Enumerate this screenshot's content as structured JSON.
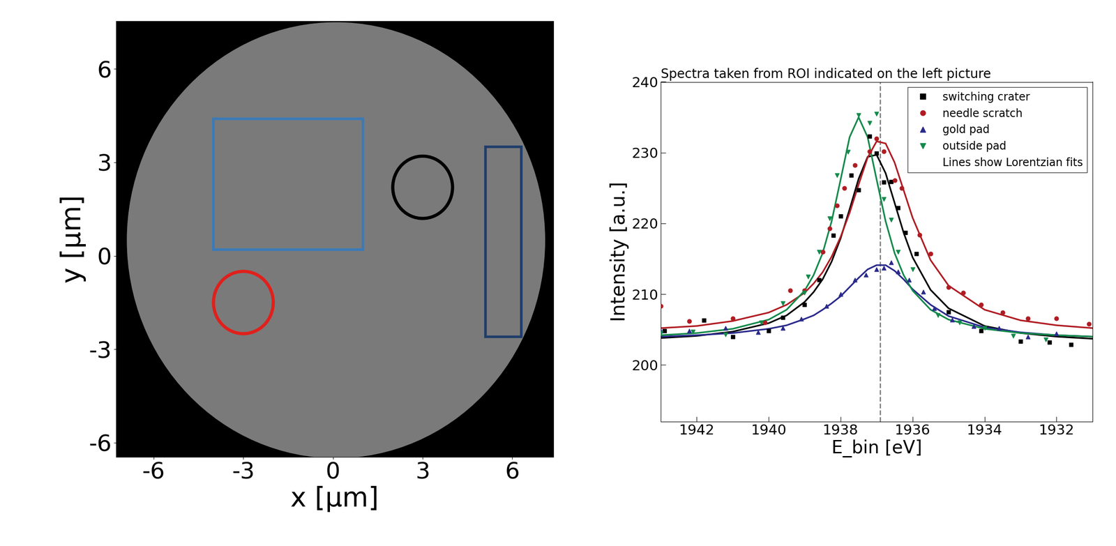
{
  "chart_data": [
    {
      "type": "image",
      "xlabel": "x [µm]",
      "ylabel": "y [µm]",
      "xlim": [
        -7.26,
        7.38
      ],
      "ylim": [
        -6.46,
        7.53
      ],
      "xticks": [
        -6,
        -3,
        0,
        3,
        6
      ],
      "yticks": [
        -6,
        -3,
        0,
        3,
        6
      ],
      "field_of_view": {
        "center": [
          0.1,
          0.5
        ],
        "radius": 7.0
      },
      "rois": [
        {
          "shape": "rectangle",
          "x": [
            -4.0,
            1.0
          ],
          "y": [
            0.2,
            4.4
          ],
          "color": "#3a7ab8"
        },
        {
          "shape": "circle",
          "center": [
            3.0,
            2.2
          ],
          "radius": 1.0,
          "color": "#000000"
        },
        {
          "shape": "circle",
          "center": [
            -3.0,
            -1.5
          ],
          "radius": 1.0,
          "color": "#e0201c"
        },
        {
          "shape": "rectangle",
          "x": [
            5.1,
            6.3
          ],
          "y": [
            -2.6,
            3.5
          ],
          "color": "#1f3d6b"
        }
      ]
    },
    {
      "type": "scatter",
      "title": "Spectra taken from ROI indicated on the left picture",
      "xlabel": "E_bin [eV]",
      "ylabel": "Intensity [a.u.]",
      "xlim": [
        1943,
        1931
      ],
      "ylim": [
        192,
        240
      ],
      "xticks": [
        1942,
        1940,
        1938,
        1936,
        1934,
        1932
      ],
      "yticks": [
        200,
        210,
        220,
        230,
        240
      ],
      "legend": "upper right",
      "legend_note": "Lines show Lorentzian fits",
      "reference_line": 1936.9,
      "fit_x": [
        1943,
        1942,
        1941,
        1940,
        1939.5,
        1939,
        1938.75,
        1938.5,
        1938.25,
        1938,
        1937.75,
        1937.5,
        1937.25,
        1937,
        1936.75,
        1936.5,
        1936.25,
        1936,
        1935.5,
        1935,
        1934,
        1933,
        1932,
        1931
      ],
      "series": [
        {
          "name": "switching crater",
          "color": "#000000",
          "marker": "s",
          "x": [
            1942.9,
            1941.8,
            1941.0,
            1940.0,
            1939.6,
            1939.0,
            1938.6,
            1938.2,
            1938.0,
            1937.7,
            1937.5,
            1937.2,
            1937.0,
            1936.8,
            1936.6,
            1936.4,
            1936.2,
            1935.9,
            1935.0,
            1934.1,
            1933.0,
            1932.2,
            1931.6
          ],
          "values": [
            204.8,
            206.3,
            204.0,
            204.8,
            206.7,
            208.5,
            212.0,
            218.3,
            221.0,
            226.8,
            224.7,
            232.3,
            229.9,
            225.8,
            225.9,
            222.2,
            218.7,
            215.7,
            207.5,
            204.8,
            203.3,
            203.2,
            202.9
          ],
          "fit": [
            203.8,
            204.1,
            204.7,
            205.9,
            207.0,
            208.9,
            210.3,
            212.1,
            214.6,
            217.9,
            222.0,
            226.3,
            229.4,
            229.7,
            227.1,
            222.9,
            218.7,
            215.2,
            210.6,
            208.0,
            205.5,
            204.5,
            204.0,
            203.7
          ]
        },
        {
          "name": "needle scratch",
          "color": "#b01c23",
          "marker": "o",
          "x": [
            1943.0,
            1942.2,
            1941.0,
            1940.1,
            1939.4,
            1939.0,
            1938.5,
            1938.3,
            1938.1,
            1937.9,
            1937.6,
            1937.2,
            1937.0,
            1936.8,
            1936.5,
            1936.3,
            1935.8,
            1935.5,
            1935.0,
            1934.6,
            1934.1,
            1933.5,
            1932.8,
            1932.0,
            1931.1
          ],
          "values": [
            208.3,
            206.2,
            206.6,
            206.0,
            210.5,
            210.5,
            216.0,
            219.3,
            222.5,
            225.0,
            228.2,
            230.2,
            232.0,
            230.2,
            226.1,
            225.0,
            218.4,
            215.7,
            211.0,
            210.2,
            208.5,
            207.4,
            206.6,
            206.6,
            205.8
          ],
          "fit": [
            205.2,
            205.5,
            206.2,
            207.4,
            208.5,
            210.2,
            211.5,
            213.1,
            215.3,
            218.1,
            221.5,
            225.5,
            229.3,
            231.6,
            231.3,
            228.6,
            224.7,
            220.8,
            214.8,
            211.2,
            207.8,
            206.3,
            205.6,
            205.2
          ]
        },
        {
          "name": "gold pad",
          "color": "#2a2a8c",
          "marker": "^",
          "x": [
            1943.0,
            1942.2,
            1941.2,
            1940.3,
            1939.6,
            1939.1,
            1938.4,
            1938.0,
            1937.6,
            1937.3,
            1937.0,
            1936.8,
            1936.6,
            1936.4,
            1936.1,
            1935.7,
            1935.4,
            1934.9,
            1934.3,
            1933.6,
            1932.8,
            1932.0
          ],
          "values": [
            204.8,
            204.8,
            205.2,
            204.6,
            205.2,
            206.5,
            208.3,
            210.0,
            212.0,
            212.7,
            213.5,
            213.7,
            214.5,
            213.2,
            212.0,
            210.3,
            208.0,
            206.4,
            205.5,
            205.2,
            204.0,
            204.4
          ],
          "fit": [
            204.0,
            204.2,
            204.5,
            205.1,
            205.6,
            206.5,
            207.0,
            207.8,
            208.7,
            209.7,
            211.0,
            212.3,
            213.5,
            214.1,
            214.1,
            213.3,
            212.1,
            210.7,
            208.5,
            206.9,
            205.3,
            204.6,
            204.2,
            204.0
          ]
        },
        {
          "name": "outside pad",
          "color": "#138a4a",
          "marker": "v",
          "x": [
            1943.0,
            1942.1,
            1941.2,
            1940.2,
            1939.6,
            1939.0,
            1938.9,
            1938.6,
            1938.3,
            1938.1,
            1937.8,
            1937.5,
            1937.2,
            1937.0,
            1936.8,
            1936.6,
            1936.4,
            1936.0,
            1935.3,
            1934.7,
            1934.0,
            1933.2,
            1932.3
          ],
          "values": [
            204.5,
            204.7,
            204.3,
            206.0,
            208.7,
            210.2,
            212.5,
            216.0,
            220.7,
            226.8,
            230.1,
            235.3,
            234.2,
            235.5,
            223.4,
            220.5,
            216.0,
            213.5,
            207.0,
            206.0,
            205.2,
            204.1,
            203.6
          ],
          "fit": [
            204.2,
            204.5,
            205.1,
            206.4,
            207.8,
            210.5,
            212.7,
            215.8,
            220.3,
            226.2,
            232.2,
            235.0,
            232.2,
            226.2,
            220.3,
            215.8,
            212.7,
            210.5,
            207.8,
            206.4,
            205.1,
            204.5,
            204.2,
            204.0
          ]
        }
      ]
    }
  ]
}
